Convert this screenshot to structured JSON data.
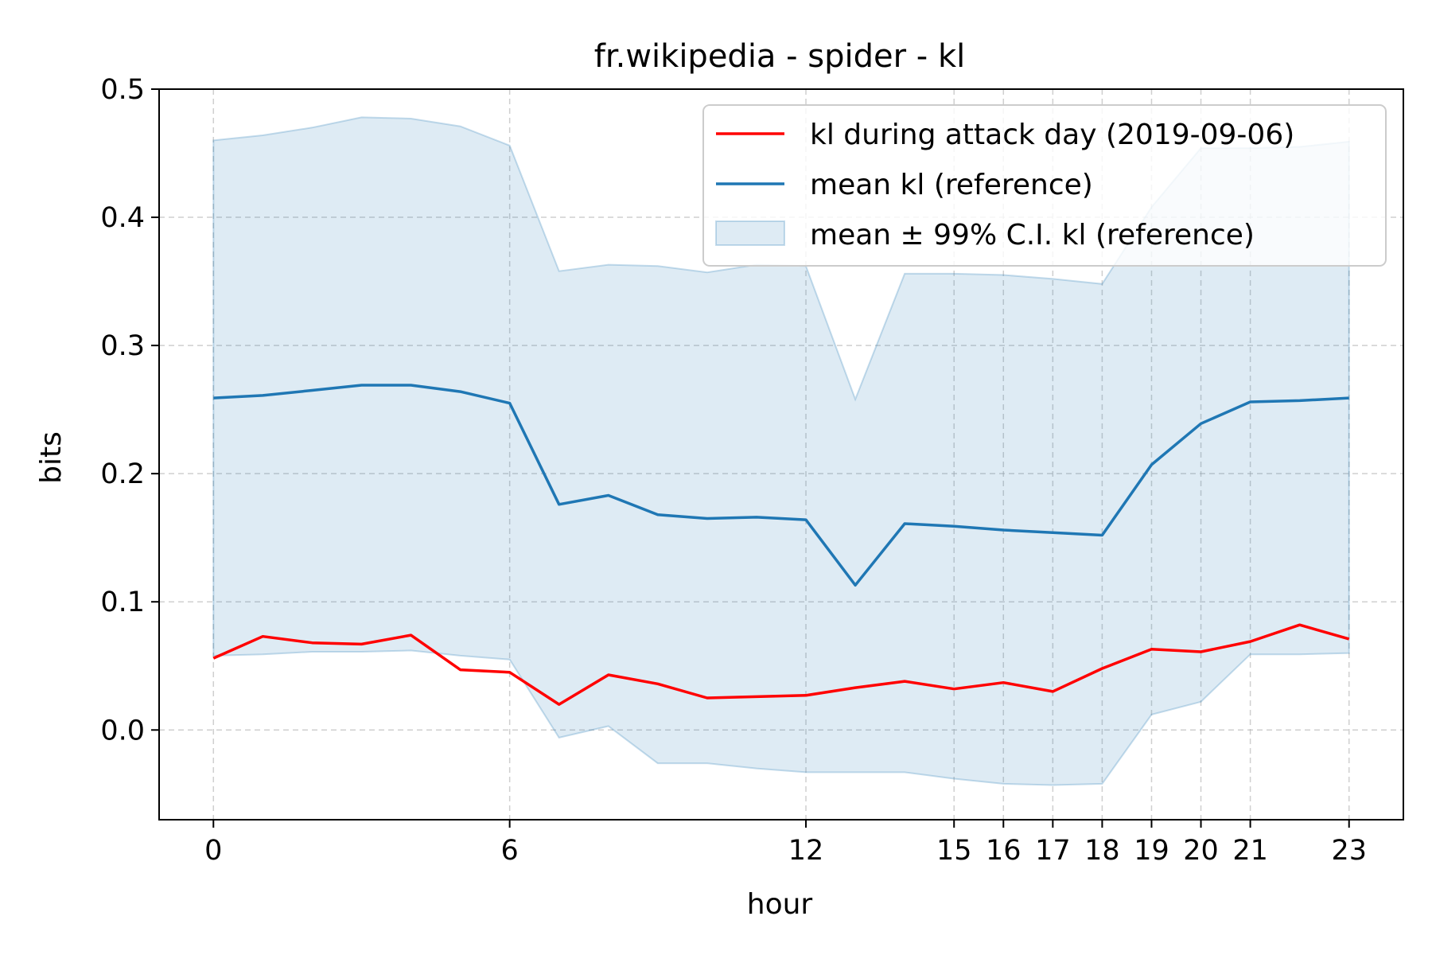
{
  "chart_data": {
    "type": "line",
    "title": "fr.wikipedia - spider - kl",
    "xlabel": "hour",
    "ylabel": "bits",
    "xlim": [
      -1.1,
      24.1
    ],
    "ylim": [
      -0.07,
      0.5
    ],
    "x_ticks": [
      0,
      6,
      12,
      15,
      16,
      17,
      18,
      19,
      20,
      21,
      23
    ],
    "y_ticks": [
      0.0,
      0.1,
      0.2,
      0.3,
      0.4,
      0.5
    ],
    "y_tick_labels": [
      "0.0",
      "0.1",
      "0.2",
      "0.3",
      "0.4",
      "0.5"
    ],
    "grid": true,
    "legend_position": "top-right",
    "x": [
      0,
      1,
      2,
      3,
      4,
      5,
      6,
      7,
      8,
      9,
      10,
      11,
      12,
      13,
      14,
      15,
      16,
      17,
      18,
      19,
      20,
      21,
      22,
      23
    ],
    "series": [
      {
        "name": "kl during attack day (2019-09-06)",
        "color": "#ff0000",
        "values": [
          0.056,
          0.073,
          0.068,
          0.067,
          0.074,
          0.047,
          0.045,
          0.02,
          0.043,
          0.036,
          0.025,
          0.026,
          0.027,
          0.033,
          0.038,
          0.032,
          0.037,
          0.03,
          0.048,
          0.063,
          0.061,
          0.069,
          0.082,
          0.071
        ]
      },
      {
        "name": "mean kl (reference)",
        "color": "#1f77b4",
        "values": [
          0.259,
          0.261,
          0.265,
          0.269,
          0.269,
          0.264,
          0.255,
          0.176,
          0.183,
          0.168,
          0.165,
          0.166,
          0.164,
          0.113,
          0.161,
          0.159,
          0.156,
          0.154,
          0.152,
          0.207,
          0.239,
          0.256,
          0.257,
          0.259
        ]
      }
    ],
    "band": {
      "name": "mean ± 99% C.I. kl (reference)",
      "color": "#1f77b4",
      "upper": [
        0.46,
        0.464,
        0.47,
        0.478,
        0.477,
        0.471,
        0.456,
        0.358,
        0.363,
        0.362,
        0.357,
        0.363,
        0.362,
        0.258,
        0.356,
        0.356,
        0.355,
        0.352,
        0.348,
        0.408,
        0.454,
        0.454,
        0.455,
        0.459
      ],
      "lower": [
        0.058,
        0.059,
        0.061,
        0.061,
        0.062,
        0.058,
        0.055,
        -0.006,
        0.003,
        -0.026,
        -0.026,
        -0.03,
        -0.033,
        -0.033,
        -0.033,
        -0.038,
        -0.042,
        -0.043,
        -0.042,
        0.012,
        0.022,
        0.059,
        0.059,
        0.06
      ]
    }
  }
}
